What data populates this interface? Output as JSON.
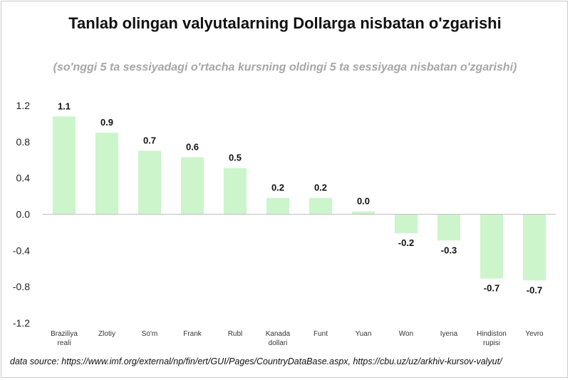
{
  "chart_data": {
    "type": "bar",
    "title": "Tanlab olingan valyutalarning  Dollarga nisbatan o'zgarishi",
    "subtitle": "(so'nggi 5 ta sessiyadagi o'rtacha kursning oldingi 5 ta sessiyaga nisbatan o'zgarishi)",
    "categories": [
      [
        "Braziliya",
        "reali"
      ],
      [
        "Zlotiy"
      ],
      [
        "So'm"
      ],
      [
        "Frank"
      ],
      [
        "Rubl"
      ],
      [
        "Kanada",
        "dollari"
      ],
      [
        "Funt"
      ],
      [
        "Yuan"
      ],
      [
        "Won"
      ],
      [
        "Iyena"
      ],
      [
        "Hindiston",
        "rupisi"
      ],
      [
        "Yevro"
      ]
    ],
    "values": [
      1.08,
      0.9,
      0.7,
      0.63,
      0.51,
      0.18,
      0.18,
      0.03,
      -0.21,
      -0.29,
      -0.71,
      -0.73
    ],
    "data_labels": [
      "1.1",
      "0.9",
      "0.7",
      "0.6",
      "0.5",
      "0.2",
      "0.2",
      "0.0",
      "-0.2",
      "-0.3",
      "-0.7",
      "-0.7"
    ],
    "yticks": [
      "1.2",
      "0.8",
      "0.4",
      "0.0",
      "-0.4",
      "-0.8",
      "-1.2"
    ],
    "ylim": [
      -1.2,
      1.2
    ],
    "grid": false,
    "bar_color": "#ccf5cc",
    "axis_color": "#bfbfbf",
    "xlabel": "",
    "ylabel": ""
  },
  "source_text": "data source: https://www.imf.org/external/np/fin/ert/GUI/Pages/CountryDataBase.aspx, https://cbu.uz/uz/arkhiv-kursov-valyut/"
}
